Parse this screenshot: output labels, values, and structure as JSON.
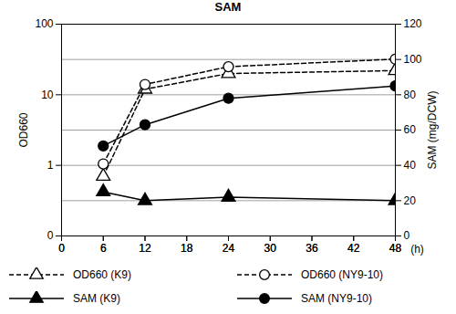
{
  "chart_data": {
    "type": "line",
    "title": "SAM",
    "x_label": "(h)",
    "y_label": "OD660",
    "y2_label": "SAM (mg/DCW)",
    "x": [
      6,
      12,
      24,
      48
    ],
    "xlim": [
      0,
      48
    ],
    "xticks": [
      0,
      6,
      12,
      18,
      24,
      30,
      36,
      42,
      48
    ],
    "log": "y",
    "ylim": [
      0.1,
      100
    ],
    "yticks": [
      {
        "value": 0.1,
        "label": "0"
      },
      1,
      10,
      100
    ],
    "y2lim": [
      0,
      120
    ],
    "y2ticks": [
      0,
      20,
      40,
      60,
      80,
      100,
      120
    ],
    "grid": true,
    "series": [
      {
        "name": "OD660 (K9)",
        "color": "#000000",
        "marker": "triangle-open",
        "line_style": "dashed",
        "values": [
          0.7,
          12,
          20,
          22
        ]
      },
      {
        "name": "OD660 (NY9-10)",
        "color": "#000000",
        "marker": "circle-open",
        "line_style": "dashed",
        "values": [
          1.05,
          14,
          25,
          32
        ]
      },
      {
        "name": "SAM (K9)",
        "color": "#000000",
        "marker": "triangle",
        "line_style": "solid",
        "axis": "y2",
        "values": [
          25,
          20,
          22,
          20
        ]
      },
      {
        "name": "SAM (NY9-10)",
        "color": "#000000",
        "marker": "circle",
        "line_style": "solid",
        "axis": "y2",
        "values": [
          51,
          63,
          78,
          85
        ]
      }
    ]
  }
}
